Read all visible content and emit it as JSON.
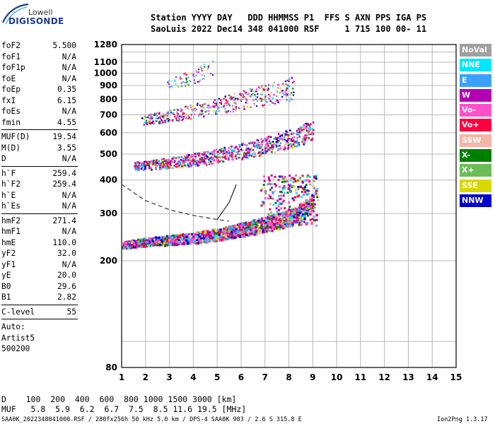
{
  "logo": {
    "line1": "Lowell",
    "line2": "DIGISONDE"
  },
  "header": {
    "line1": "Station YYYY DAY   DDD HHMMSS P1  FFS S AXN PPS IGA PS",
    "line2": "SaoLuis 2022 Dec14 348 041000 RSF     1 715 100 00- 11"
  },
  "params": [
    {
      "label": "foF2",
      "value": "5.500"
    },
    {
      "label": "foF1",
      "value": "N/A"
    },
    {
      "label": "foF1p",
      "value": "N/A"
    },
    {
      "label": "foE",
      "value": "N/A"
    },
    {
      "label": "foEp",
      "value": "0.35"
    },
    {
      "label": "fxI",
      "value": "6.15"
    },
    {
      "label": "foEs",
      "value": "N/A"
    },
    {
      "label": "fmin",
      "value": "4.55"
    },
    {
      "label": "MUF(D)",
      "value": "19.54"
    },
    {
      "label": "M(D)",
      "value": "3.55"
    },
    {
      "label": "D",
      "value": "N/A"
    },
    {
      "label": "h`F",
      "value": "259.4"
    },
    {
      "label": "h`F2",
      "value": "259.4"
    },
    {
      "label": "h`E",
      "value": "N/A"
    },
    {
      "label": "h`Es",
      "value": "N/A"
    },
    {
      "label": "hmF2",
      "value": "271.4"
    },
    {
      "label": "hmF1",
      "value": "N/A"
    },
    {
      "label": "hmE",
      "value": "110.0"
    },
    {
      "label": "yF2",
      "value": "32.0"
    },
    {
      "label": "yF1",
      "value": "N/A"
    },
    {
      "label": "yE",
      "value": "20.0"
    },
    {
      "label": "B0",
      "value": "29.6"
    },
    {
      "label": "B1",
      "value": "2.82"
    },
    {
      "label": "C-level",
      "value": "55"
    }
  ],
  "autoscaling": {
    "line1": "Auto:",
    "line2": "Artist5",
    "line3": "500200"
  },
  "legend": [
    {
      "label": "NoVal",
      "color": "#a0a0a0"
    },
    {
      "label": "NNE",
      "color": "#00e8ff"
    },
    {
      "label": "E",
      "color": "#3ba0ff"
    },
    {
      "label": "W",
      "color": "#b400b4"
    },
    {
      "label": "Vo-",
      "color": "#ff50c8"
    },
    {
      "label": "Vo+",
      "color": "#ff0040"
    },
    {
      "label": "SSW",
      "color": "#f5b4a8"
    },
    {
      "label": "X-",
      "color": "#008000"
    },
    {
      "label": "X+",
      "color": "#6cbd58"
    },
    {
      "label": "SSE",
      "color": "#d8d800"
    },
    {
      "label": "NNW",
      "color": "#0000d0"
    }
  ],
  "bottom": {
    "d_row": "D    100  200  400  600  800 1000 1500 3000 [km]",
    "muf_row": "MUF   5.8  5.9  6.2  6.7  7.5  8.5 11.6 19.5 [MHz]"
  },
  "footer": {
    "left": "SAA0K_2022348041000.RSF / 280fx256h 50 kHz 5.0 km / DPS-4 SAA0K 903 / 2.6 S 315.8 E",
    "right": "Ion2Png 1.3.17"
  },
  "chart_data": {
    "type": "scatter",
    "xlim": [
      1,
      15
    ],
    "ylim": [
      80,
      1280
    ],
    "xticks": [
      "1",
      "2",
      "3",
      "4",
      "5",
      "6",
      "7",
      "8",
      "9",
      "10",
      "11",
      "12",
      "13",
      "14",
      "15"
    ],
    "yticks": [
      "80",
      "200",
      "300",
      "400",
      "500",
      "600",
      "700",
      "800",
      "900",
      "1000",
      "1100",
      "1280"
    ],
    "y_scale": "log",
    "grid": true,
    "trace_bands": [
      {
        "name": "F-trace",
        "x": [
          1.0,
          2.0,
          3.0,
          4.0,
          5.0,
          6.0,
          7.0,
          7.6,
          8.2,
          8.6,
          9.0
        ],
        "y": [
          230,
          236,
          240,
          245,
          252,
          262,
          275,
          283,
          295,
          310,
          330
        ]
      },
      {
        "name": "2F-trace",
        "x": [
          1.5,
          2.5,
          3.5,
          4.5,
          5.5,
          6.5,
          7.5,
          8.5,
          9.0
        ],
        "y": [
          452,
          460,
          472,
          485,
          505,
          525,
          552,
          590,
          620
        ]
      },
      {
        "name": "3F-trace",
        "x": [
          1.8,
          3.0,
          4.0,
          5.0,
          6.0,
          7.0,
          7.8,
          8.2
        ],
        "y": [
          672,
          695,
          725,
          760,
          795,
          835,
          860,
          890
        ]
      },
      {
        "name": "4F-trace",
        "x": [
          2.9,
          3.5,
          4.0,
          4.5,
          4.8
        ],
        "y": [
          915,
          945,
          975,
          1010,
          1040
        ]
      }
    ],
    "fit_curve": {
      "x": [
        1.0,
        2.0,
        3.0,
        4.0,
        5.0,
        5.5
      ],
      "y": [
        385,
        335,
        310,
        295,
        285,
        281
      ]
    }
  }
}
